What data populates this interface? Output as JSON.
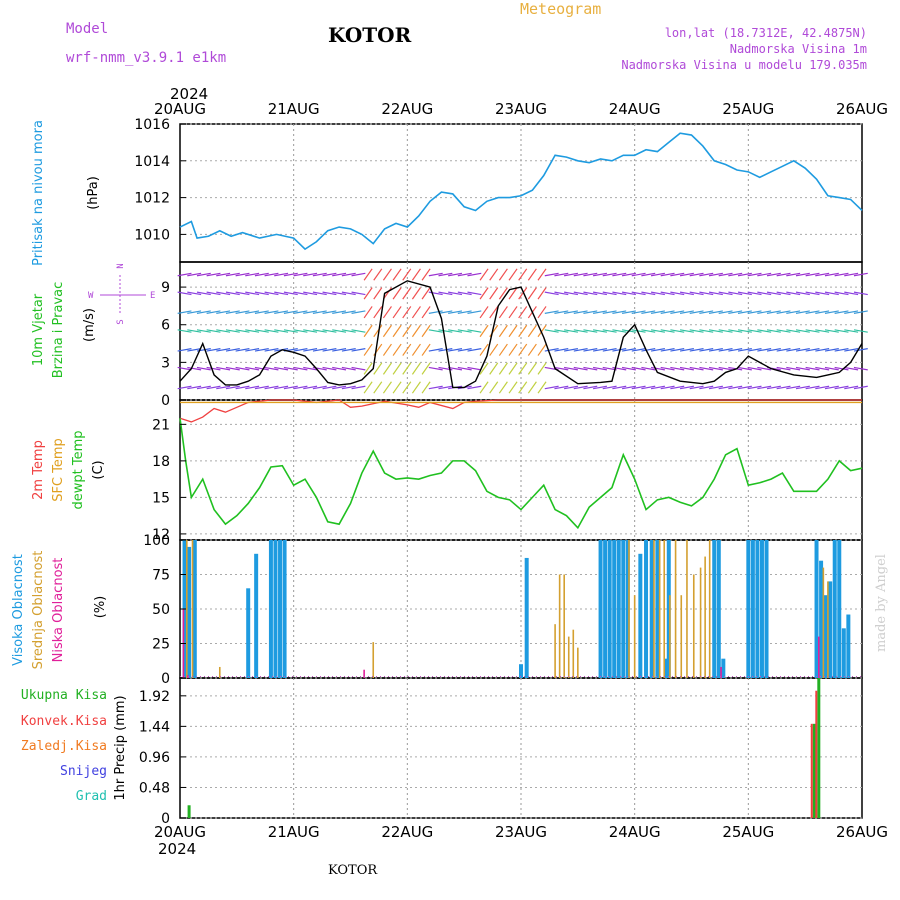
{
  "header": {
    "model_label": "Model",
    "model_name": "wrf-nmm_v3.9.1  e1km",
    "station": "KOTOR",
    "title": "Meteogram",
    "lonlat": "lon,lat (18.7312E, 42.4875N)",
    "elevation": "Nadmorska Visina 1m",
    "model_elevation": "Nadmorska Visina u modelu 179.035m",
    "year_top": "2024",
    "year_bottom": "2024",
    "footer_station": "KOTOR",
    "watermark": "made by Angel"
  },
  "colors": {
    "pressure": "#1e9be0",
    "wind_label": "#22c022",
    "temp2m": "#f04040",
    "sfc": "#e0a020",
    "dewpt": "#20c020",
    "high_cloud": "#1e9be0",
    "mid_cloud": "#d4a030",
    "low_cloud": "#e0209a",
    "total_precip": "#22b022",
    "conv_precip": "#f04040",
    "frozen": "#f07a20",
    "snow": "#4040e0",
    "graupel": "#20c0b0",
    "purple_text": "#b04ad8",
    "title_orange": "#e8b040"
  },
  "axes": {
    "date_labels": [
      "20AUG",
      "21AUG",
      "22AUG",
      "23AUG",
      "24AUG",
      "25AUG",
      "26AUG"
    ]
  },
  "panels": {
    "pressure": {
      "label": "Pritisak na nivou mora",
      "unit": "(hPa)",
      "ticks": [
        "1016",
        "1014",
        "1012",
        "1010"
      ]
    },
    "wind": {
      "label1": "10m Vjetar",
      "label2": "Brzina i Pravac",
      "unit": "(m/s)",
      "ticks": [
        "9",
        "6",
        "3",
        "0"
      ],
      "compass": [
        "N",
        "W",
        "E",
        "S"
      ]
    },
    "temp": {
      "label1": "2m Temp",
      "label2": "SFC Temp",
      "label3": "dewpt Temp",
      "unit": "(C)",
      "ticks": [
        "21",
        "18",
        "15",
        "12"
      ]
    },
    "cloud": {
      "label1": "Visoka Oblacnost",
      "label2": "Srednja Oblacnost",
      "label3": "Niska Oblacnost",
      "unit": "(%)",
      "ticks": [
        "100",
        "75",
        "50",
        "25",
        "0"
      ]
    },
    "precip": {
      "legend": [
        "Ukupna Kisa",
        "Konvek.Kisa",
        "Zaledj.Kisa",
        "Snijeg",
        "Grad"
      ],
      "unit": "1hr Precip (mm)",
      "ticks": [
        "1.92",
        "1.44",
        "0.96",
        "0.48",
        "0"
      ]
    }
  },
  "chart_data": [
    {
      "type": "line",
      "panel": "pressure",
      "ylabel": "Pritisak na nivou mora (hPa)",
      "ylim": [
        1008.5,
        1016
      ],
      "x_days": [
        0,
        0.1,
        0.15,
        0.25,
        0.35,
        0.45,
        0.55,
        0.7,
        0.85,
        1,
        1.1,
        1.2,
        1.3,
        1.4,
        1.5,
        1.6,
        1.7,
        1.8,
        1.9,
        2,
        2.1,
        2.2,
        2.3,
        2.4,
        2.5,
        2.6,
        2.7,
        2.8,
        2.9,
        3,
        3.1,
        3.2,
        3.3,
        3.4,
        3.5,
        3.6,
        3.7,
        3.8,
        3.9,
        4,
        4.1,
        4.2,
        4.3,
        4.4,
        4.5,
        4.6,
        4.7,
        4.8,
        4.9,
        5,
        5.1,
        5.2,
        5.3,
        5.4,
        5.5,
        5.6,
        5.7,
        5.8,
        5.9,
        6
      ],
      "values": [
        1010.4,
        1010.7,
        1009.8,
        1009.9,
        1010.2,
        1009.9,
        1010.1,
        1009.8,
        1010.0,
        1009.8,
        1009.2,
        1009.6,
        1010.2,
        1010.4,
        1010.3,
        1010.0,
        1009.5,
        1010.3,
        1010.6,
        1010.4,
        1011.0,
        1011.8,
        1012.3,
        1012.2,
        1011.5,
        1011.3,
        1011.8,
        1012.0,
        1012.0,
        1012.1,
        1012.4,
        1013.2,
        1014.3,
        1014.2,
        1014.0,
        1013.9,
        1014.1,
        1014.0,
        1014.3,
        1014.3,
        1014.6,
        1014.5,
        1015.0,
        1015.5,
        1015.4,
        1014.8,
        1014.0,
        1013.8,
        1013.5,
        1013.4,
        1013.1,
        1013.4,
        1013.7,
        1014.0,
        1013.6,
        1013.0,
        1012.1,
        1012.0,
        1011.9,
        1011.3
      ]
    },
    {
      "type": "line",
      "panel": "wind",
      "ylabel": "Brzina i Pravac (m/s)",
      "ylim": [
        0,
        11
      ],
      "series": [
        {
          "name": "10m Vjetar",
          "x_days": [
            0,
            0.1,
            0.2,
            0.3,
            0.4,
            0.5,
            0.6,
            0.7,
            0.8,
            0.9,
            1.0,
            1.1,
            1.2,
            1.3,
            1.4,
            1.5,
            1.6,
            1.7,
            1.8,
            2.0,
            2.2,
            2.3,
            2.4,
            2.5,
            2.6,
            2.7,
            2.8,
            2.9,
            3.0,
            3.1,
            3.2,
            3.3,
            3.5,
            3.7,
            3.8,
            3.9,
            4.0,
            4.1,
            4.2,
            4.4,
            4.6,
            4.7,
            4.8,
            4.9,
            5.0,
            5.2,
            5.4,
            5.6,
            5.7,
            5.8,
            5.9,
            6.0
          ],
          "values": [
            1.5,
            2.5,
            4.5,
            2.0,
            1.2,
            1.2,
            1.5,
            2.0,
            3.5,
            4.0,
            3.8,
            3.5,
            2.5,
            1.4,
            1.2,
            1.3,
            1.6,
            2.5,
            8.5,
            9.5,
            9.0,
            6.5,
            1.0,
            1.0,
            1.5,
            3.5,
            7.5,
            8.8,
            9.0,
            7.0,
            5.0,
            2.5,
            1.3,
            1.4,
            1.5,
            5.0,
            6.0,
            4.0,
            2.2,
            1.5,
            1.3,
            1.5,
            2.2,
            2.5,
            3.5,
            2.5,
            2.0,
            1.8,
            2.0,
            2.2,
            3.0,
            4.5
          ]
        }
      ]
    },
    {
      "type": "line",
      "panel": "temp",
      "ylabel": "(C)",
      "ylim": [
        11.5,
        23
      ],
      "series": [
        {
          "name": "2m Temp",
          "x_days": [
            0,
            0.1,
            0.2,
            0.3,
            0.4,
            0.5,
            0.6,
            0.8,
            1.0,
            1.2,
            1.4,
            1.5,
            1.6,
            1.8,
            2.0,
            2.1,
            2.2,
            2.4,
            2.5,
            2.6,
            2.8,
            3.0,
            3.2,
            3.4,
            3.6,
            3.8,
            4.0,
            4.2,
            4.4,
            4.6,
            4.8,
            5.0,
            5.2,
            5.4,
            5.6,
            5.8,
            6.0
          ],
          "values": [
            21.5,
            21.2,
            21.6,
            22.3,
            22.0,
            22.4,
            22.8,
            23.0,
            23.0,
            22.8,
            23.0,
            22.4,
            22.5,
            22.9,
            22.6,
            22.4,
            22.8,
            22.3,
            22.8,
            22.9,
            23.0,
            23.0,
            23.0,
            23.0,
            23.0,
            23.0,
            23.0,
            23.0,
            23.0,
            23.0,
            23.0,
            23.0,
            23.0,
            23.0,
            23.0,
            23.0,
            23.0
          ]
        },
        {
          "name": "SFC Temp",
          "x_days": [
            0,
            6
          ],
          "values": [
            22.8,
            22.8
          ]
        },
        {
          "name": "dewpt Temp",
          "x_days": [
            0,
            0.05,
            0.1,
            0.2,
            0.3,
            0.4,
            0.5,
            0.6,
            0.7,
            0.8,
            0.9,
            1.0,
            1.1,
            1.2,
            1.3,
            1.4,
            1.5,
            1.6,
            1.7,
            1.8,
            1.9,
            2.0,
            2.1,
            2.2,
            2.3,
            2.4,
            2.5,
            2.6,
            2.7,
            2.8,
            2.9,
            3.0,
            3.1,
            3.2,
            3.3,
            3.4,
            3.5,
            3.6,
            3.7,
            3.8,
            3.9,
            4.0,
            4.1,
            4.2,
            4.3,
            4.4,
            4.5,
            4.6,
            4.7,
            4.8,
            4.9,
            5.0,
            5.1,
            5.2,
            5.3,
            5.4,
            5.5,
            5.6,
            5.7,
            5.8,
            5.9,
            6.0
          ],
          "values": [
            21.5,
            18.0,
            15.0,
            16.5,
            14.0,
            12.8,
            13.5,
            14.5,
            15.8,
            17.5,
            17.6,
            16.0,
            16.5,
            15.0,
            13.0,
            12.8,
            14.5,
            17.0,
            18.8,
            17.0,
            16.5,
            16.6,
            16.5,
            16.8,
            17.0,
            18.0,
            18.0,
            17.2,
            15.5,
            15.0,
            14.8,
            14.0,
            15.0,
            16.0,
            14.0,
            13.5,
            12.5,
            14.2,
            15.0,
            15.8,
            18.5,
            16.5,
            14.0,
            14.8,
            15.0,
            14.6,
            14.3,
            15.0,
            16.5,
            18.5,
            19.0,
            16.0,
            16.2,
            16.5,
            17.0,
            15.5,
            15.5,
            15.5,
            16.5,
            18.0,
            17.2,
            17.4
          ]
        }
      ]
    },
    {
      "type": "bar",
      "panel": "cloud",
      "ylabel": "(%)",
      "ylim": [
        0,
        100
      ],
      "series": [
        {
          "name": "Visoka Oblacnost",
          "bars": [
            [
              0.04,
              100
            ],
            [
              0.08,
              95
            ],
            [
              0.13,
              100
            ],
            [
              0.6,
              65
            ],
            [
              0.67,
              90
            ],
            [
              0.8,
              100
            ],
            [
              0.84,
              100
            ],
            [
              0.88,
              100
            ],
            [
              0.92,
              100
            ],
            [
              3.0,
              10
            ],
            [
              3.05,
              87
            ],
            [
              3.7,
              100
            ],
            [
              3.74,
              100
            ],
            [
              3.78,
              100
            ],
            [
              3.82,
              100
            ],
            [
              3.86,
              100
            ],
            [
              3.9,
              100
            ],
            [
              3.94,
              100
            ],
            [
              4.05,
              90
            ],
            [
              4.1,
              100
            ],
            [
              4.15,
              100
            ],
            [
              4.2,
              100
            ],
            [
              4.28,
              14
            ],
            [
              4.3,
              100
            ],
            [
              4.7,
              100
            ],
            [
              4.74,
              100
            ],
            [
              4.78,
              14
            ],
            [
              5.0,
              100
            ],
            [
              5.04,
              100
            ],
            [
              5.08,
              100
            ],
            [
              5.12,
              100
            ],
            [
              5.16,
              100
            ],
            [
              5.6,
              100
            ],
            [
              5.64,
              85
            ],
            [
              5.68,
              60
            ],
            [
              5.72,
              70
            ],
            [
              5.76,
              100
            ],
            [
              5.8,
              100
            ],
            [
              5.84,
              36
            ],
            [
              5.88,
              46
            ]
          ]
        },
        {
          "name": "Srednja Oblacnost",
          "bars": [
            [
              0.06,
              100
            ],
            [
              0.11,
              100
            ],
            [
              0.35,
              8
            ],
            [
              1.7,
              26
            ],
            [
              3.3,
              39
            ],
            [
              3.34,
              75
            ],
            [
              3.38,
              75
            ],
            [
              3.42,
              30
            ],
            [
              3.46,
              35
            ],
            [
              3.5,
              22
            ],
            [
              3.95,
              100
            ],
            [
              4.0,
              60
            ],
            [
              4.17,
              100
            ],
            [
              4.22,
              100
            ],
            [
              4.26,
              100
            ],
            [
              4.31,
              60
            ],
            [
              4.36,
              100
            ],
            [
              4.41,
              60
            ],
            [
              4.46,
              100
            ],
            [
              4.52,
              75
            ],
            [
              4.58,
              80
            ],
            [
              4.62,
              88
            ],
            [
              4.66,
              100
            ],
            [
              5.66,
              80
            ],
            [
              5.7,
              70
            ]
          ]
        },
        {
          "name": "Niska Oblacnost",
          "bars": [
            [
              0.03,
              50
            ],
            [
              0.07,
              2
            ],
            [
              1.62,
              6
            ],
            [
              4.76,
              8
            ],
            [
              5.62,
              30
            ]
          ]
        }
      ]
    },
    {
      "type": "bar",
      "panel": "precip",
      "ylabel": "1hr Precip (mm)",
      "ylim": [
        0,
        2.2
      ],
      "series": [
        {
          "name": "Ukupna Kisa",
          "bars": [
            [
              0.08,
              0.2
            ],
            [
              5.58,
              1.48
            ],
            [
              5.62,
              2.2
            ]
          ]
        },
        {
          "name": "Konvek.Kisa",
          "bars": [
            [
              5.58,
              1.48
            ],
            [
              5.62,
              2.0
            ]
          ]
        }
      ]
    }
  ]
}
